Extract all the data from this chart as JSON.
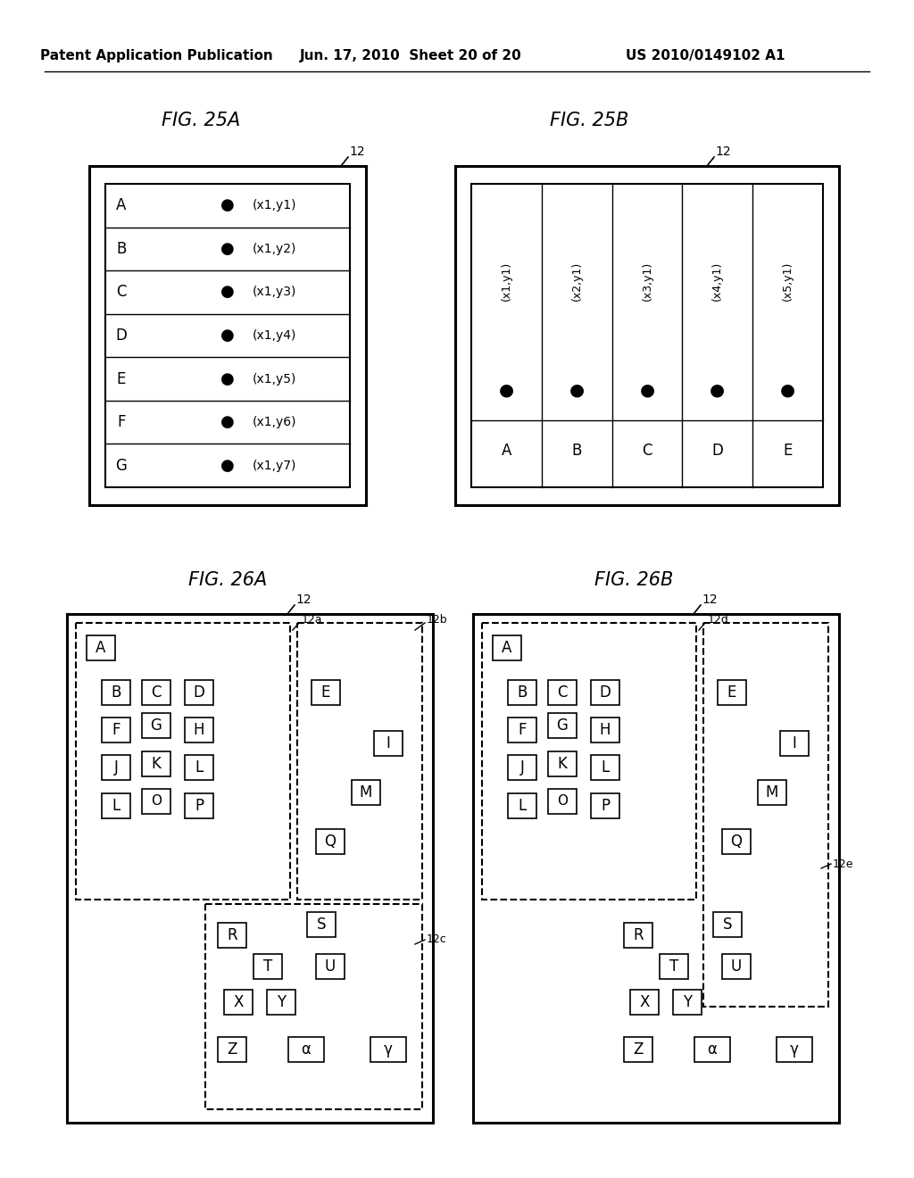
{
  "header_left": "Patent Application Publication",
  "header_mid": "Jun. 17, 2010  Sheet 20 of 20",
  "header_right": "US 2010/0149102 A1",
  "fig25a_title": "FIG. 25A",
  "fig25b_title": "FIG. 25B",
  "fig26a_title": "FIG. 26A",
  "fig26b_title": "FIG. 26B",
  "fig25a_rows": [
    "A",
    "B",
    "C",
    "D",
    "E",
    "F",
    "G"
  ],
  "fig25a_coords": [
    "(x1,y1)",
    "(x1,y2)",
    "(x1,y3)",
    "(x1,y4)",
    "(x1,y5)",
    "(x1,y6)",
    "(x1,y7)"
  ],
  "fig25b_cols": [
    "A",
    "B",
    "C",
    "D",
    "E"
  ],
  "fig25b_col_labels": [
    "(x1,y1)",
    "(x2,y1)",
    "(x3,y1)",
    "(x4,y1)",
    "(x5,y1)"
  ],
  "bg_color": "#ffffff",
  "fig25a_outer": [
    100,
    185,
    310,
    380
  ],
  "fig25b_outer": [
    510,
    185,
    430,
    380
  ],
  "fig26a_outer": [
    75,
    700,
    410,
    540
  ],
  "fig26b_outer": [
    530,
    700,
    410,
    540
  ]
}
